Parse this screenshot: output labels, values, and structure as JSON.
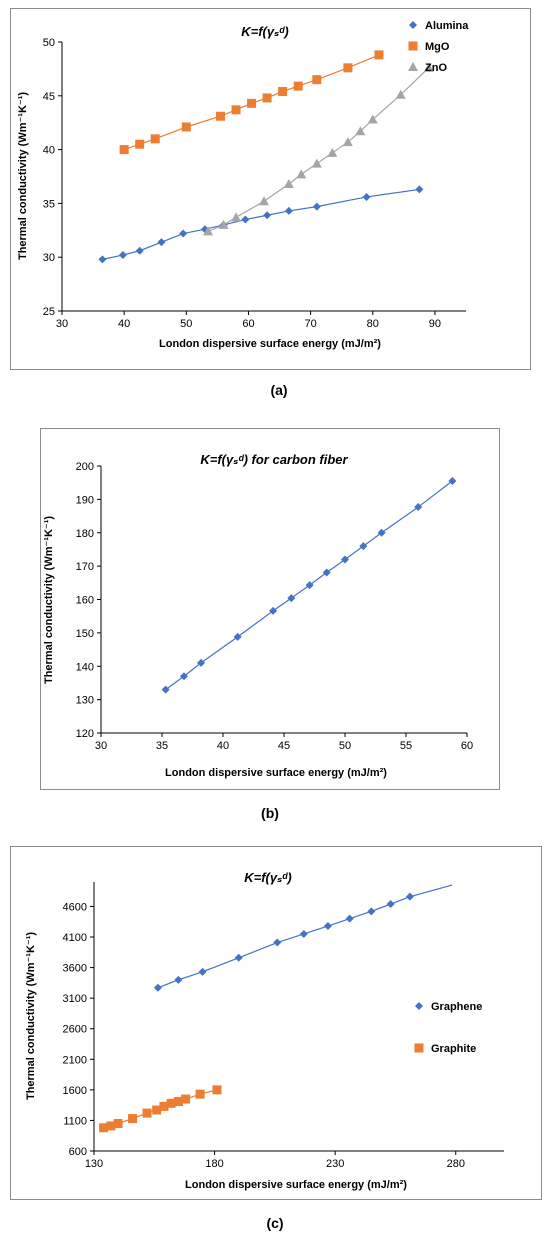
{
  "panels": [
    {
      "label": "(a)"
    },
    {
      "label": "(b)"
    },
    {
      "label": "(c)"
    }
  ],
  "chart_data": [
    {
      "type": "line",
      "title": "K=f(γₛᵈ)",
      "xlabel": "London dispersive surface energy (mJ/m²)",
      "ylabel": "Thermal conductivity (Wm⁻¹K⁻¹)",
      "xlim": [
        30,
        95
      ],
      "ylim": [
        25,
        50
      ],
      "xticks": [
        30,
        40,
        50,
        60,
        70,
        80,
        90
      ],
      "yticks": [
        25,
        30,
        35,
        40,
        45,
        50
      ],
      "grid": false,
      "legend_position": "top-right",
      "series": [
        {
          "name": "Alumina",
          "color": "#4472c4",
          "marker": "diamond",
          "x": [
            36.5,
            39.8,
            42.5,
            46,
            49.5,
            53,
            56,
            59.5,
            63,
            66.5,
            71,
            79,
            87.5
          ],
          "y": [
            29.8,
            30.2,
            30.6,
            31.4,
            32.2,
            32.6,
            33.0,
            33.5,
            33.9,
            34.3,
            34.7,
            35.6,
            36.3
          ]
        },
        {
          "name": "MgO",
          "color": "#ed7d31",
          "marker": "square",
          "x": [
            40,
            42.5,
            45,
            50,
            55.5,
            58,
            60.5,
            63,
            65.5,
            68,
            71,
            76,
            81
          ],
          "y": [
            40.0,
            40.5,
            41.0,
            42.1,
            43.1,
            43.7,
            44.3,
            44.8,
            45.4,
            45.9,
            46.5,
            47.6,
            48.8
          ]
        },
        {
          "name": "ZnO",
          "color": "#a5a5a5",
          "marker": "triangle",
          "x": [
            53.5,
            56,
            58,
            62.5,
            66.5,
            68.5,
            71,
            73.5,
            76,
            78,
            80,
            84.5,
            89
          ],
          "y": [
            32.4,
            33.0,
            33.7,
            35.2,
            36.8,
            37.7,
            38.7,
            39.7,
            40.7,
            41.7,
            42.8,
            45.1,
            47.6
          ]
        }
      ]
    },
    {
      "type": "line",
      "title": "K=f(γₛᵈ) for carbon fiber",
      "xlabel": "London dispersive surface energy (mJ/m²)",
      "ylabel": "Thermal conductivity (Wm⁻¹K⁻¹)",
      "xlim": [
        30,
        60
      ],
      "ylim": [
        120,
        200
      ],
      "xticks": [
        30,
        35,
        40,
        45,
        50,
        55,
        60
      ],
      "yticks": [
        120,
        130,
        140,
        150,
        160,
        170,
        180,
        190,
        200
      ],
      "grid": false,
      "series": [
        {
          "color": "#4472c4",
          "marker": "diamond",
          "x": [
            35.3,
            36.8,
            38.2,
            41.2,
            44.1,
            45.6,
            47.1,
            48.5,
            50.0,
            51.5,
            53.0,
            56.0,
            58.8
          ],
          "y": [
            133,
            137,
            141,
            148.8,
            156.6,
            160.4,
            164.3,
            168.1,
            172.0,
            176.0,
            180.0,
            187.7,
            195.5
          ]
        }
      ]
    },
    {
      "type": "line",
      "title": "K=f(γₛᵈ)",
      "xlabel": "London dispersive surface energy (mJ/m²)",
      "ylabel": "Thermal conductivity (Wm⁻¹K⁻¹)",
      "xlim": [
        130,
        300
      ],
      "ylim": [
        600,
        5000
      ],
      "xticks": [
        130,
        180,
        230,
        280
      ],
      "yticks": [
        600,
        1100,
        1600,
        2100,
        2600,
        3100,
        3600,
        4100,
        4600
      ],
      "grid": false,
      "legend_position": "right",
      "series": [
        {
          "name": "Graphene",
          "color": "#4472c4",
          "marker": "diamond",
          "x": [
            156.5,
            165,
            175,
            190,
            206,
            217,
            227,
            236,
            245,
            253,
            261
          ],
          "y": [
            3270,
            3400,
            3530,
            3760,
            4010,
            4150,
            4280,
            4400,
            4520,
            4640,
            4760
          ],
          "fit_x": [
            156.5,
            278.5
          ],
          "fit_y": [
            3270,
            4950
          ]
        },
        {
          "name": "Graphite",
          "color": "#ed7d31",
          "marker": "square",
          "x": [
            134,
            137,
            140,
            146,
            152,
            156,
            159,
            162,
            165,
            168,
            174,
            181
          ],
          "y": [
            980,
            1010,
            1050,
            1130,
            1220,
            1270,
            1330,
            1380,
            1410,
            1450,
            1530,
            1600
          ]
        }
      ]
    }
  ]
}
